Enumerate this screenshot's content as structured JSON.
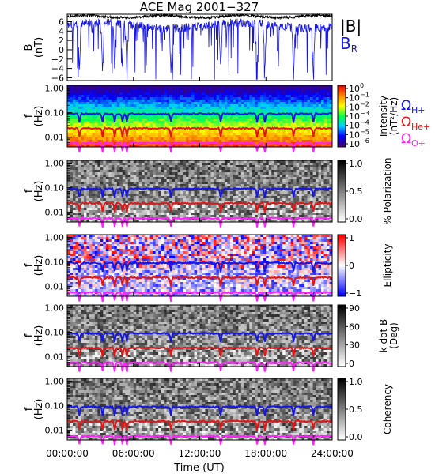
{
  "chart_data": {
    "type": "multi-panel spectrogram",
    "title": "ACE Mag 2001−327",
    "xlabel": "Time (UT)",
    "x_tick_labels": [
      "00:00:00",
      "06:00:00",
      "12:00:00",
      "18:00:00",
      "24:00:00"
    ],
    "xlim_hours": [
      0,
      24
    ],
    "freq_tick_labels": [
      "1.00",
      "0.10",
      "0.01"
    ],
    "freq_ylim_hz": [
      0.004,
      1.3
    ],
    "freq_scale": "log",
    "gyro_legend": [
      {
        "label": "Ω",
        "sub": "H+",
        "color": "#1515e6"
      },
      {
        "label": "Ω",
        "sub": "He+",
        "color": "#e61515"
      },
      {
        "label": "Ω",
        "sub": "O+",
        "color": "#ff22ff"
      }
    ],
    "gyro_lines_hz": [
      {
        "name": "H+",
        "color": "#1515e6",
        "mean": 0.09
      },
      {
        "name": "He+",
        "color": "#e61515",
        "mean": 0.023
      },
      {
        "name": "O+",
        "color": "#ff22ff",
        "mean": 0.0057
      }
    ],
    "field_panel": {
      "ylabel": "B",
      "ylabel_unit": "(nT)",
      "y_tick_labels": [
        "6",
        "4",
        "2",
        "0",
        "−2",
        "−4",
        "−6"
      ],
      "y_ticks": [
        6,
        4,
        2,
        0,
        -2,
        -4,
        -6
      ],
      "ylim": [
        -6.6,
        7.6
      ],
      "series": [
        {
          "name": "|B|",
          "color": "#000000",
          "mean": 7.0
        },
        {
          "name": "B",
          "sub": "R",
          "color": "#1515e6",
          "mean": 4.8
        }
      ]
    },
    "spectral_panels": [
      {
        "id": "intensity",
        "colorbar": "rainbow",
        "bar_label": "Intensity",
        "bar_unit": "(nT²/Hz)",
        "bar_tick_labels": [
          {
            "b": "10",
            "e": "0"
          },
          {
            "b": "10",
            "e": "−1"
          },
          {
            "b": "10",
            "e": "−2"
          },
          {
            "b": "10",
            "e": "−3"
          },
          {
            "b": "10",
            "e": "−4"
          },
          {
            "b": "10",
            "e": "−5"
          },
          {
            "b": "10",
            "e": "−6"
          }
        ]
      },
      {
        "id": "polarization",
        "colorbar": "gray",
        "bar_label": "% Polarization",
        "bar_unit": "",
        "bar_tick_labels": [
          "1.0",
          "0.5",
          "0.0"
        ]
      },
      {
        "id": "ellipticity",
        "colorbar": "bwr",
        "bar_label": "Ellipticity",
        "bar_unit": "",
        "bar_tick_labels": [
          "1",
          "0",
          "−1"
        ]
      },
      {
        "id": "kdotb",
        "colorbar": "gray",
        "bar_label": "k dot B",
        "bar_unit": "(Deg)",
        "bar_tick_labels": [
          "90",
          "60",
          "30",
          "0"
        ]
      },
      {
        "id": "coherency",
        "colorbar": "gray",
        "bar_label": "Coherency",
        "bar_unit": "",
        "bar_tick_labels": [
          "1.0",
          "0.5",
          "0.0"
        ]
      }
    ],
    "freq_panel_ylabel": "f",
    "freq_panel_yunit": "(Hz)"
  }
}
